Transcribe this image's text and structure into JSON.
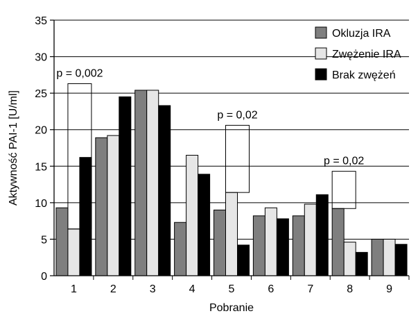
{
  "chart_data": {
    "type": "bar",
    "title": "",
    "xlabel": "Pobranie",
    "ylabel": "Aktywność PAI-1 [U/ml]",
    "ylim": [
      0,
      35
    ],
    "yticks": [
      "0",
      "5",
      "10",
      "15",
      "20",
      "25",
      "30",
      "35"
    ],
    "grid": "horizontal",
    "legend_position": "top-right",
    "categories": [
      "1",
      "2",
      "3",
      "4",
      "5",
      "6",
      "7",
      "8",
      "9"
    ],
    "series": [
      {
        "name": "Okluzja IRA",
        "color": "#7f7f7f",
        "values": [
          9.3,
          18.9,
          25.4,
          7.3,
          9.0,
          8.2,
          8.2,
          9.2,
          5.0
        ]
      },
      {
        "name": "Zwężenie IRA",
        "color": "#e6e6e6",
        "values": [
          6.4,
          19.2,
          25.4,
          16.5,
          11.4,
          9.3,
          9.8,
          4.6,
          5.0
        ]
      },
      {
        "name": "Brak zwężeń",
        "color": "#000000",
        "values": [
          16.2,
          24.5,
          23.3,
          13.9,
          4.2,
          7.8,
          11.1,
          3.2,
          4.3
        ]
      }
    ],
    "annotations": [
      {
        "category": "1",
        "series": "Zwężenie IRA",
        "bracket_top": 26.3,
        "text": "p = 0,002"
      },
      {
        "category": "5",
        "series": "Zwężenie IRA",
        "bracket_top": 20.6,
        "text": "p = 0,02"
      },
      {
        "category": "8",
        "series": "Okluzja IRA",
        "bracket_top": 14.3,
        "text": "p = 0,02"
      }
    ]
  }
}
